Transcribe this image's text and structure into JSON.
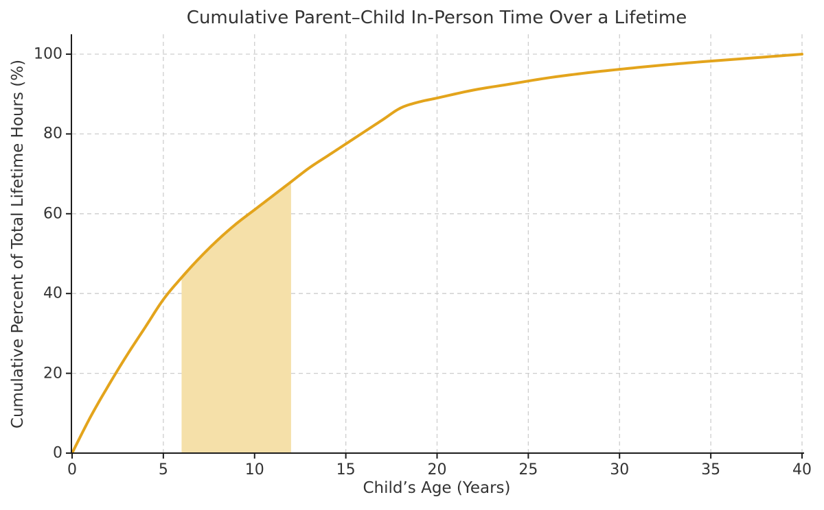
{
  "figure": {
    "background_color": "#ffffff",
    "text_color": "#333333"
  },
  "chart_data": {
    "type": "line",
    "title": "Cumulative Parent–Child In-Person Time Over a Lifetime",
    "xlabel": "Child’s Age (Years)",
    "ylabel": "Cumulative Percent of Total Lifetime Hours (%)",
    "xlim": [
      0,
      40
    ],
    "ylim": [
      0,
      105
    ],
    "xticks": [
      0,
      5,
      10,
      15,
      20,
      25,
      30,
      35,
      40
    ],
    "yticks": [
      0,
      20,
      40,
      60,
      80,
      100
    ],
    "grid": true,
    "grid_style": "dashed",
    "legend": null,
    "series": [
      {
        "name": "cumulative-percent-of-lifetime-hours",
        "color": "#E3A41C",
        "line_width": 4,
        "x": [
          0,
          1,
          2,
          3,
          4,
          5,
          6,
          7,
          8,
          9,
          10,
          11,
          12,
          13,
          14,
          15,
          16,
          17,
          18,
          19,
          20,
          22,
          24,
          26,
          28,
          30,
          32,
          34,
          36,
          38,
          40
        ],
        "y": [
          0,
          9,
          17,
          24.5,
          31.5,
          38.5,
          44,
          49,
          53.5,
          57.5,
          61,
          64.5,
          68,
          71.5,
          74.5,
          77.5,
          80.5,
          83.5,
          86.5,
          88,
          89,
          91,
          92.5,
          94,
          95.2,
          96.2,
          97.1,
          97.9,
          98.6,
          99.3,
          100
        ]
      }
    ],
    "shaded_band": {
      "x_start": 6,
      "x_end": 12,
      "color": "#F5E0A9",
      "fills_to": "curve"
    },
    "style": {
      "grid_color": "#CDCDCD",
      "spine_color": "#1C1C1C",
      "spines_visible": [
        "left",
        "bottom"
      ]
    }
  }
}
